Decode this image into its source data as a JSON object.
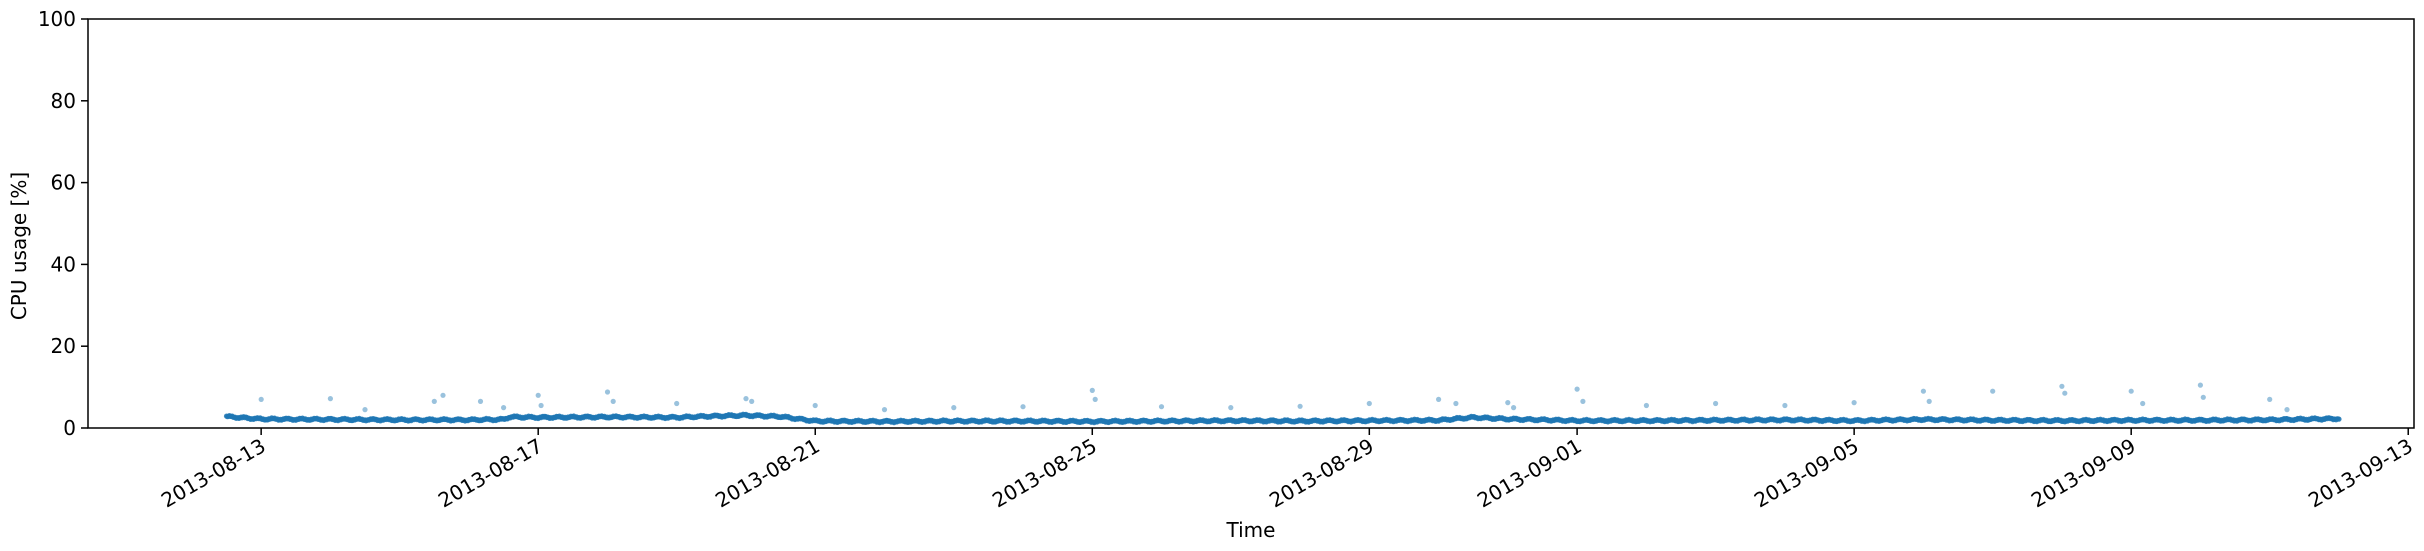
{
  "chart_data": {
    "type": "scatter",
    "title": "",
    "xlabel": "Time",
    "ylabel": "CPU usage [%]",
    "xlim": [
      "2013-08-10T12:00",
      "2013-09-13T02:00"
    ],
    "ylim": [
      0,
      100
    ],
    "y_ticks": [
      0,
      20,
      40,
      60,
      80,
      100
    ],
    "x_ticks": [
      "2013-08-13",
      "2013-08-17",
      "2013-08-21",
      "2013-08-25",
      "2013-08-29",
      "2013-09-01",
      "2013-09-05",
      "2013-09-09",
      "2013-09-13"
    ],
    "grid": false,
    "legend": "none",
    "color": "#1f77b4",
    "series": [
      {
        "baseline": [
          [
            "2013-08-12T12:00",
            2.8
          ],
          [
            "2013-08-13T00:00",
            2.2
          ],
          [
            "2013-08-14T00:00",
            2.1
          ],
          [
            "2013-08-15T00:00",
            2.0
          ],
          [
            "2013-08-16T00:00",
            2.0
          ],
          [
            "2013-08-16T12:00",
            2.1
          ],
          [
            "2013-08-16T14:00",
            2.7
          ],
          [
            "2013-08-17T00:00",
            2.6
          ],
          [
            "2013-08-18T00:00",
            2.7
          ],
          [
            "2013-08-19T00:00",
            2.6
          ],
          [
            "2013-08-19T12:00",
            2.9
          ],
          [
            "2013-08-20T00:00",
            3.1
          ],
          [
            "2013-08-20T12:00",
            2.8
          ],
          [
            "2013-08-21T00:00",
            1.7
          ],
          [
            "2013-08-22T00:00",
            1.6
          ],
          [
            "2013-08-23T00:00",
            1.7
          ],
          [
            "2013-08-24T00:00",
            1.7
          ],
          [
            "2013-08-25T00:00",
            1.6
          ],
          [
            "2013-08-26T00:00",
            1.7
          ],
          [
            "2013-08-27T00:00",
            1.8
          ],
          [
            "2013-08-28T00:00",
            1.7
          ],
          [
            "2013-08-29T00:00",
            1.8
          ],
          [
            "2013-08-30T00:00",
            1.9
          ],
          [
            "2013-08-30T12:00",
            2.6
          ],
          [
            "2013-08-31T00:00",
            2.2
          ],
          [
            "2013-09-01T00:00",
            1.8
          ],
          [
            "2013-09-02T00:00",
            1.8
          ],
          [
            "2013-09-03T00:00",
            1.9
          ],
          [
            "2013-09-04T00:00",
            2.0
          ],
          [
            "2013-09-05T00:00",
            1.8
          ],
          [
            "2013-09-06T00:00",
            2.1
          ],
          [
            "2013-09-07T00:00",
            1.9
          ],
          [
            "2013-09-08T00:00",
            1.8
          ],
          [
            "2013-09-09T00:00",
            1.9
          ],
          [
            "2013-09-10T00:00",
            1.9
          ],
          [
            "2013-09-11T00:00",
            2.0
          ],
          [
            "2013-09-12T00:00",
            2.3
          ]
        ],
        "outliers": [
          [
            "2013-08-13T00:00",
            7.0
          ],
          [
            "2013-08-14T00:00",
            7.2
          ],
          [
            "2013-08-14T12:00",
            4.5
          ],
          [
            "2013-08-15T12:00",
            6.5
          ],
          [
            "2013-08-15T15:00",
            8.0
          ],
          [
            "2013-08-16T04:00",
            6.5
          ],
          [
            "2013-08-16T12:00",
            5.0
          ],
          [
            "2013-08-17T00:00",
            8.0
          ],
          [
            "2013-08-17T01:00",
            5.5
          ],
          [
            "2013-08-18T00:00",
            8.8
          ],
          [
            "2013-08-18T02:00",
            6.5
          ],
          [
            "2013-08-19T00:00",
            6.0
          ],
          [
            "2013-08-20T00:00",
            7.2
          ],
          [
            "2013-08-20T02:00",
            6.5
          ],
          [
            "2013-08-21T00:00",
            5.5
          ],
          [
            "2013-08-22T00:00",
            4.5
          ],
          [
            "2013-08-23T00:00",
            5.0
          ],
          [
            "2013-08-24T00:00",
            5.2
          ],
          [
            "2013-08-25T00:00",
            9.2
          ],
          [
            "2013-08-25T01:00",
            7.0
          ],
          [
            "2013-08-26T00:00",
            5.2
          ],
          [
            "2013-08-27T00:00",
            5.0
          ],
          [
            "2013-08-28T00:00",
            5.3
          ],
          [
            "2013-08-29T00:00",
            6.0
          ],
          [
            "2013-08-30T00:00",
            7.0
          ],
          [
            "2013-08-30T06:00",
            6.0
          ],
          [
            "2013-08-31T00:00",
            6.2
          ],
          [
            "2013-08-31T02:00",
            5.0
          ],
          [
            "2013-09-01T00:00",
            9.5
          ],
          [
            "2013-09-01T02:00",
            6.5
          ],
          [
            "2013-09-02T00:00",
            5.5
          ],
          [
            "2013-09-03T00:00",
            6.0
          ],
          [
            "2013-09-04T00:00",
            5.5
          ],
          [
            "2013-09-05T00:00",
            6.2
          ],
          [
            "2013-09-06T00:00",
            9.0
          ],
          [
            "2013-09-06T02:00",
            6.5
          ],
          [
            "2013-09-07T00:00",
            9.0
          ],
          [
            "2013-09-08T00:00",
            10.2
          ],
          [
            "2013-09-08T01:00",
            8.5
          ],
          [
            "2013-09-09T00:00",
            9.0
          ],
          [
            "2013-09-09T04:00",
            6.0
          ],
          [
            "2013-09-10T00:00",
            10.5
          ],
          [
            "2013-09-10T01:00",
            7.5
          ],
          [
            "2013-09-11T00:00",
            7.0
          ],
          [
            "2013-09-11T06:00",
            4.5
          ]
        ]
      }
    ]
  }
}
